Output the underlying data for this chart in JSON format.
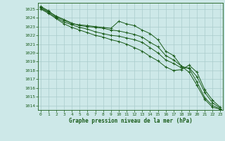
{
  "title": "Graphe pression niveau de la mer (hPa)",
  "bg_color": "#cde8e8",
  "grid_color": "#aacccc",
  "line_color": "#1a5c1a",
  "xlim": [
    -0.3,
    23.3
  ],
  "ylim": [
    1013.5,
    1025.7
  ],
  "yticks": [
    1014,
    1015,
    1016,
    1017,
    1018,
    1019,
    1020,
    1021,
    1022,
    1023,
    1024,
    1025
  ],
  "xticks": [
    0,
    1,
    2,
    3,
    4,
    5,
    6,
    7,
    8,
    9,
    10,
    11,
    12,
    13,
    14,
    15,
    16,
    17,
    18,
    19,
    20,
    21,
    22,
    23
  ],
  "series": [
    [
      1025.3,
      1024.8,
      1024.1,
      1023.7,
      1023.3,
      1023.2,
      1023.1,
      1023.0,
      1022.9,
      1022.8,
      1023.6,
      1023.3,
      1023.1,
      1022.6,
      1022.2,
      1021.5,
      1020.2,
      1019.7,
      1018.5,
      1017.8,
      1016.3,
      1014.7,
      1013.8,
      1013.6
    ],
    [
      1025.2,
      1024.7,
      1024.2,
      1023.8,
      1023.4,
      1023.1,
      1023.0,
      1022.9,
      1022.8,
      1022.6,
      1022.5,
      1022.3,
      1022.1,
      1021.8,
      1021.2,
      1020.7,
      1019.7,
      1019.2,
      1018.5,
      1018.2,
      1016.7,
      1014.9,
      1014.0,
      1013.6
    ],
    [
      1025.1,
      1024.6,
      1024.0,
      1023.5,
      1023.2,
      1022.9,
      1022.7,
      1022.4,
      1022.2,
      1022.0,
      1021.9,
      1021.7,
      1021.5,
      1021.2,
      1020.6,
      1020.0,
      1019.2,
      1018.8,
      1018.3,
      1018.3,
      1017.3,
      1015.5,
      1014.3,
      1013.7
    ],
    [
      1025.0,
      1024.5,
      1023.9,
      1023.3,
      1022.9,
      1022.6,
      1022.3,
      1022.0,
      1021.8,
      1021.5,
      1021.3,
      1021.0,
      1020.6,
      1020.2,
      1019.6,
      1019.1,
      1018.4,
      1018.0,
      1018.1,
      1018.6,
      1017.8,
      1015.8,
      1014.6,
      1013.8
    ]
  ]
}
